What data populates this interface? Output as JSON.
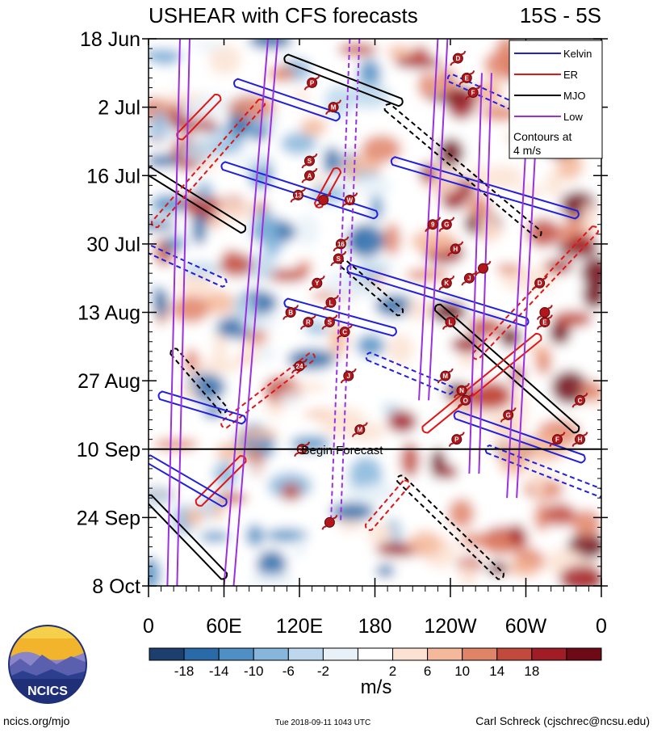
{
  "chart_data": {
    "type": "heatmap",
    "title": "USHEAR with CFS forecasts",
    "lat_band": "15S - 5S",
    "x_tick_labels": [
      "0",
      "60E",
      "120E",
      "180",
      "120W",
      "60W",
      "0"
    ],
    "x_range_deg": [
      0,
      360
    ],
    "y_tick_labels": [
      "18 Jun",
      "2 Jul",
      "16 Jul",
      "30 Jul",
      "13 Aug",
      "27 Aug",
      "10 Sep",
      "24 Sep",
      "8 Oct"
    ],
    "y_range_dates": [
      "2018-06-18",
      "2018-10-08"
    ],
    "forecast_start": "2018-09-10",
    "forecast_label": "Begin Forecast",
    "colorbar": {
      "labels": [
        "-18",
        "-14",
        "-10",
        "-6",
        "-2",
        "2",
        "6",
        "10",
        "14",
        "18"
      ],
      "colors": [
        "#1c3f6e",
        "#2a6aa8",
        "#4f8fc4",
        "#86b6dc",
        "#bdd8ec",
        "#e8f1f8",
        "#ffffff",
        "#fbe2d2",
        "#f4b89a",
        "#e08468",
        "#c24a3d",
        "#a11c25",
        "#6e0a16"
      ],
      "unit": "m/s"
    },
    "legend": {
      "placement": "top-right",
      "entries": [
        {
          "name": "Kelvin",
          "color": "#1f1fdc"
        },
        {
          "name": "ER",
          "color": "#e01515"
        },
        {
          "name": "MJO",
          "color": "#000000"
        },
        {
          "name": "Low",
          "color": "#9b30e0"
        }
      ],
      "note": "Contours at 4 m/s"
    },
    "kelvin": [
      {
        "lon": [
          70,
          150
        ],
        "date": [
          "2018-06-27",
          "2018-07-04"
        ]
      },
      {
        "lon": [
          240,
          300
        ],
        "date": [
          "2018-06-26",
          "2018-07-03"
        ]
      },
      {
        "lon": [
          60,
          180
        ],
        "date": [
          "2018-07-14",
          "2018-07-24"
        ]
      },
      {
        "lon": [
          195,
          340
        ],
        "date": [
          "2018-07-13",
          "2018-07-24"
        ]
      },
      {
        "lon": [
          0,
          60
        ],
        "date": [
          "2018-07-31",
          "2018-08-07"
        ]
      },
      {
        "lon": [
          160,
          300
        ],
        "date": [
          "2018-08-04",
          "2018-08-15"
        ]
      },
      {
        "lon": [
          110,
          195
        ],
        "date": [
          "2018-08-11",
          "2018-08-17"
        ]
      },
      {
        "lon": [
          175,
          240
        ],
        "date": [
          "2018-08-22",
          "2018-08-29"
        ]
      },
      {
        "lon": [
          10,
          75
        ],
        "date": [
          "2018-08-30",
          "2018-09-04"
        ]
      },
      {
        "lon": [
          245,
          345
        ],
        "date": [
          "2018-09-03",
          "2018-09-12"
        ]
      },
      {
        "lon": [
          270,
          360
        ],
        "date": [
          "2018-09-10",
          "2018-09-19"
        ]
      },
      {
        "lon": [
          0,
          60
        ],
        "date": [
          "2018-09-12",
          "2018-09-21"
        ]
      }
    ],
    "er": [
      {
        "lon": [
          55,
          25
        ],
        "date": [
          "2018-06-30",
          "2018-07-08"
        ]
      },
      {
        "lon": [
          90,
          5
        ],
        "date": [
          "2018-07-01",
          "2018-07-26"
        ]
      },
      {
        "lon": [
          150,
          135
        ],
        "date": [
          "2018-07-15",
          "2018-07-22"
        ]
      },
      {
        "lon": [
          355,
          260
        ],
        "date": [
          "2018-07-27",
          "2018-08-22"
        ]
      },
      {
        "lon": [
          310,
          220
        ],
        "date": [
          "2018-08-18",
          "2018-09-06"
        ]
      },
      {
        "lon": [
          130,
          60
        ],
        "date": [
          "2018-08-22",
          "2018-09-05"
        ]
      },
      {
        "lon": [
          75,
          40
        ],
        "date": [
          "2018-09-12",
          "2018-09-21"
        ]
      },
      {
        "lon": [
          205,
          175
        ],
        "date": [
          "2018-09-17",
          "2018-09-26"
        ]
      }
    ],
    "mjo": [
      {
        "lon": [
          110,
          200
        ],
        "date": [
          "2018-06-22",
          "2018-07-01"
        ]
      },
      {
        "lon": [
          190,
          310
        ],
        "date": [
          "2018-07-02",
          "2018-07-28"
        ]
      },
      {
        "lon": [
          0,
          75
        ],
        "date": [
          "2018-07-15",
          "2018-07-27"
        ]
      },
      {
        "lon": [
          155,
          200
        ],
        "date": [
          "2018-08-03",
          "2018-08-13"
        ]
      },
      {
        "lon": [
          230,
          340
        ],
        "date": [
          "2018-08-12",
          "2018-09-06"
        ]
      },
      {
        "lon": [
          20,
          60
        ],
        "date": [
          "2018-08-21",
          "2018-09-02"
        ]
      },
      {
        "lon": [
          0,
          60
        ],
        "date": [
          "2018-09-20",
          "2018-10-06"
        ]
      },
      {
        "lon": [
          200,
          280
        ],
        "date": [
          "2018-09-16",
          "2018-10-06"
        ]
      }
    ],
    "low": [
      {
        "lon": [
          25,
          15
        ],
        "date": [
          "2018-06-18",
          "2018-10-08"
        ]
      },
      {
        "lon": [
          95,
          60
        ],
        "date": [
          "2018-06-18",
          "2018-10-08"
        ]
      },
      {
        "lon": [
          160,
          145
        ],
        "date": [
          "2018-06-18",
          "2018-09-25"
        ]
      },
      {
        "lon": [
          230,
          215
        ],
        "date": [
          "2018-06-18",
          "2018-08-31"
        ]
      },
      {
        "lon": [
          265,
          255
        ],
        "date": [
          "2018-06-25",
          "2018-09-15"
        ]
      },
      {
        "lon": [
          300,
          285
        ],
        "date": [
          "2018-07-10",
          "2018-09-20"
        ]
      }
    ],
    "storms": [
      {
        "label": "P",
        "lon": 130,
        "date": "2018-06-27"
      },
      {
        "label": "M",
        "lon": 147,
        "date": "2018-07-02"
      },
      {
        "label": "D",
        "lon": 246,
        "date": "2018-06-22"
      },
      {
        "label": "E",
        "lon": 253,
        "date": "2018-06-26"
      },
      {
        "label": "F",
        "lon": 258,
        "date": "2018-06-29"
      },
      {
        "label": "S",
        "lon": 128,
        "date": "2018-07-13"
      },
      {
        "label": "A",
        "lon": 128,
        "date": "2018-07-16"
      },
      {
        "label": "13",
        "lon": 119,
        "date": "2018-07-20"
      },
      {
        "label": "",
        "lon": 139,
        "date": "2018-07-21"
      },
      {
        "label": "W",
        "lon": 160,
        "date": "2018-07-21"
      },
      {
        "label": "9",
        "lon": 226,
        "date": "2018-07-26"
      },
      {
        "label": "G",
        "lon": 237,
        "date": "2018-07-26"
      },
      {
        "label": "16",
        "lon": 153,
        "date": "2018-07-30"
      },
      {
        "label": "S",
        "lon": 151,
        "date": "2018-08-02"
      },
      {
        "label": "H",
        "lon": 244,
        "date": "2018-07-31"
      },
      {
        "label": "Y",
        "lon": 134,
        "date": "2018-08-07"
      },
      {
        "label": "K",
        "lon": 237,
        "date": "2018-08-07"
      },
      {
        "label": "J",
        "lon": 255,
        "date": "2018-08-06"
      },
      {
        "label": "",
        "lon": 266,
        "date": "2018-08-04"
      },
      {
        "label": "D",
        "lon": 311,
        "date": "2018-08-07"
      },
      {
        "label": "L",
        "lon": 145,
        "date": "2018-08-11"
      },
      {
        "label": "B",
        "lon": 113,
        "date": "2018-08-13"
      },
      {
        "label": "R",
        "lon": 127,
        "date": "2018-08-15"
      },
      {
        "label": "S",
        "lon": 144,
        "date": "2018-08-15"
      },
      {
        "label": "C",
        "lon": 156,
        "date": "2018-08-17"
      },
      {
        "label": "L",
        "lon": 240,
        "date": "2018-08-15"
      },
      {
        "label": "",
        "lon": 315,
        "date": "2018-08-13"
      },
      {
        "label": "E",
        "lon": 315,
        "date": "2018-08-15"
      },
      {
        "label": "24",
        "lon": 120,
        "date": "2018-08-24"
      },
      {
        "label": "J",
        "lon": 159,
        "date": "2018-08-26"
      },
      {
        "label": "M",
        "lon": 236,
        "date": "2018-08-26"
      },
      {
        "label": "N",
        "lon": 249,
        "date": "2018-08-29"
      },
      {
        "label": "O",
        "lon": 252,
        "date": "2018-08-31"
      },
      {
        "label": "C",
        "lon": 343,
        "date": "2018-08-31"
      },
      {
        "label": "G",
        "lon": 286,
        "date": "2018-09-03"
      },
      {
        "label": "M",
        "lon": 168,
        "date": "2018-09-06"
      },
      {
        "label": "P",
        "lon": 245,
        "date": "2018-09-08"
      },
      {
        "label": "F",
        "lon": 325,
        "date": "2018-09-08"
      },
      {
        "label": "H",
        "lon": 343,
        "date": "2018-09-08"
      },
      {
        "label": "27",
        "lon": 122,
        "date": "2018-09-10"
      },
      {
        "label": "",
        "lon": 144,
        "date": "2018-09-25"
      }
    ]
  },
  "footer": {
    "website": "ncics.org/mjo",
    "timestamp": "Tue 2018-09-11 1043 UTC",
    "author": "Carl Schreck (cjschrec@ncsu.edu)",
    "logo_text": "NCICS"
  }
}
